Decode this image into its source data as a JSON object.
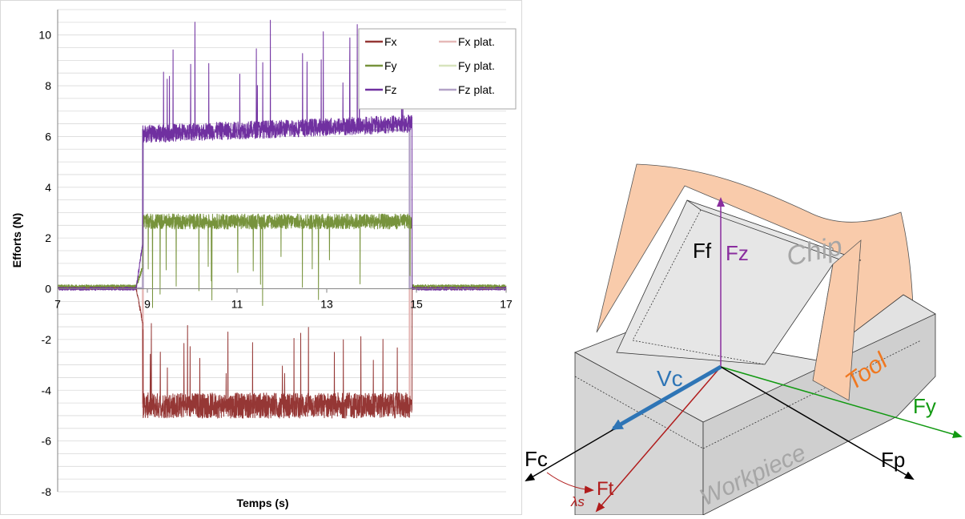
{
  "chart_data": [
    {
      "type": "line",
      "xlabel": "Temps (s)",
      "ylabel": "Efforts (N)",
      "xlim": [
        7,
        17
      ],
      "ylim": [
        -8,
        11
      ],
      "xticks": [
        7,
        9,
        11,
        13,
        15,
        17
      ],
      "yticks": [
        -8,
        -6,
        -4,
        -2,
        0,
        2,
        4,
        6,
        8,
        10
      ],
      "grid": true,
      "legend_position": "top-right",
      "cut_start": 8.9,
      "cut_end": 14.85,
      "series": [
        {
          "name": "Fx",
          "color": "#953735",
          "baseline": 0.02,
          "cut_mean": -4.6,
          "noise": 0.5,
          "spike_dir": 1,
          "spike_max": -1.3
        },
        {
          "name": "Fy",
          "color": "#77933c",
          "baseline": 0.1,
          "cut_mean": 2.65,
          "noise": 0.3,
          "spike_dir": -1,
          "spike_max": -0.8
        },
        {
          "name": "Fz",
          "color": "#7030a0",
          "baseline": 0.0,
          "cut_mean": 6.1,
          "trend": 0.4,
          "noise": 0.35,
          "spike_dir": 1,
          "spike_max": 10.6
        },
        {
          "name": "Fx plat.",
          "color": "#e6b9b8",
          "plateau": -4.65
        },
        {
          "name": "Fy plat.",
          "color": "#d7e4bd",
          "plateau": 2.65
        },
        {
          "name": "Fz plat.",
          "color": "#b3a2c7",
          "plateau": 6.25
        }
      ]
    }
  ],
  "diagram": {
    "labels": {
      "chip": "Chip",
      "tool": "Tool",
      "workpiece": "Workpiece",
      "vc": "Vc",
      "ff": "Ff",
      "fz": "Fz",
      "fc": "Fc",
      "fp": "Fp",
      "fy": "Fy",
      "ft": "Ft",
      "lambda_s": "λs"
    },
    "colors": {
      "tool": "#f9cbab",
      "workpiece": "#e0e0e0",
      "chip": "#e3e3e3",
      "vc_arrow": "#2e75b6",
      "fz_arrow": "#8a2d9e",
      "fy_arrow": "#119911",
      "ft_arrow": "#b01b1b"
    }
  }
}
